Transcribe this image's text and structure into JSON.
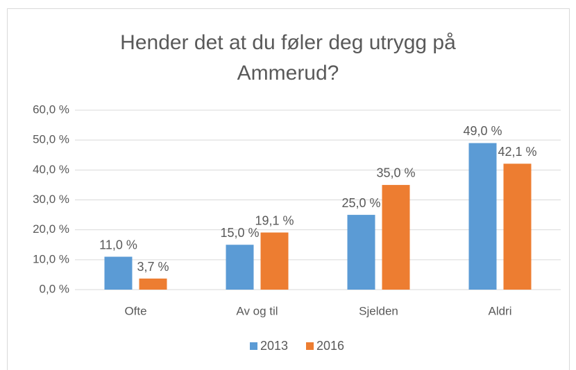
{
  "chart_data": {
    "type": "bar",
    "title": "Hender det at du føler deg utrygg på Ammerud?",
    "categories": [
      "Ofte",
      "Av og til",
      "Sjelden",
      "Aldri"
    ],
    "series": [
      {
        "name": "2013",
        "color": "#5b9bd5",
        "values": [
          11.0,
          15.0,
          25.0,
          49.0
        ],
        "value_labels": [
          "11,0 %",
          "15,0 %",
          "25,0 %",
          "49,0 %"
        ]
      },
      {
        "name": "2016",
        "color": "#ed7d31",
        "values": [
          3.7,
          19.1,
          35.0,
          42.1
        ],
        "value_labels": [
          "3,7 %",
          "19,1 %",
          "35,0 %",
          "42,1 %"
        ]
      }
    ],
    "ylim": [
      0,
      60
    ],
    "yticks": [
      {
        "value": 0,
        "label": "0,0 %"
      },
      {
        "value": 10,
        "label": "10,0 %"
      },
      {
        "value": 20,
        "label": "20,0 %"
      },
      {
        "value": 30,
        "label": "30,0 %"
      },
      {
        "value": 40,
        "label": "40,0 %"
      },
      {
        "value": 50,
        "label": "50,0 %"
      },
      {
        "value": 60,
        "label": "60,0 %"
      }
    ],
    "grid": true,
    "legend": "bottom"
  }
}
